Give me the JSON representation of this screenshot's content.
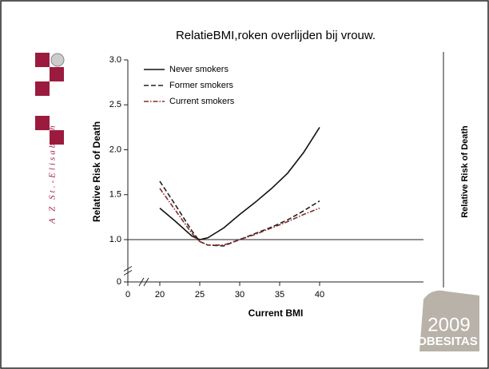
{
  "slide": {
    "hospital": "A Z St.-Elisabeth",
    "right_axis_label": "Relative Risk of Death",
    "logo_year": "2009",
    "logo_word": "OBESITAS",
    "logo_side": "AZ ST.-ELISABETH"
  },
  "chart_data": {
    "type": "line",
    "title": "RelatieBMI,roken overlijden bij vrouw.",
    "x_label": "Current BMI",
    "y_label": "Relative Risk of Death",
    "x": [
      20,
      22,
      24,
      25,
      26,
      28,
      30,
      32,
      34,
      36,
      38,
      40
    ],
    "series": [
      {
        "name": "Never smokers",
        "color": "#111111",
        "dash": "solid",
        "values": [
          1.35,
          1.2,
          1.04,
          1.0,
          1.02,
          1.13,
          1.28,
          1.42,
          1.57,
          1.74,
          1.97,
          2.25
        ]
      },
      {
        "name": "Former smokers",
        "color": "#222222",
        "dash": "dashed",
        "values": [
          1.65,
          1.38,
          1.1,
          0.98,
          0.94,
          0.93,
          1.0,
          1.07,
          1.14,
          1.22,
          1.32,
          1.43
        ]
      },
      {
        "name": "Current smokers",
        "color": "#8b2a2a",
        "dash": "dashdot",
        "values": [
          1.57,
          1.32,
          1.07,
          0.98,
          0.94,
          0.94,
          1.0,
          1.06,
          1.13,
          1.2,
          1.28,
          1.35
        ]
      }
    ],
    "xlim": [
      0,
      50
    ],
    "xticks": [
      0,
      20,
      25,
      30,
      35,
      40
    ],
    "ylim": [
      0,
      3.0
    ],
    "yticks": [
      0,
      {
        "value": 1.0,
        "label": "1.0"
      },
      {
        "value": 1.5,
        "label": "1.5"
      },
      {
        "value": 2.0,
        "label": "2.0"
      },
      {
        "value": 2.5,
        "label": "2.5"
      },
      {
        "value": 3.0,
        "label": "3.0"
      }
    ],
    "axis_break": true,
    "reference_line": 1.0,
    "legend": "upper left"
  }
}
